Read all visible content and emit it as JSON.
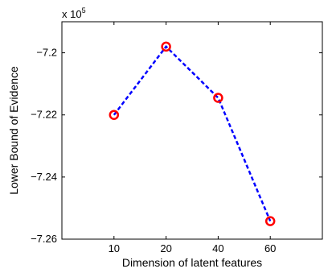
{
  "chart_data": {
    "type": "line",
    "categories": [
      "10",
      "20",
      "40",
      "60"
    ],
    "series": [
      {
        "values": [
          -7.22,
          -7.198,
          -7.2145,
          -7.2542
        ],
        "line_color": "#0000ff",
        "line_style": "dashed",
        "marker": "circle",
        "marker_color": "#ff0000"
      }
    ],
    "xlabel": "Dimension of latent features",
    "ylabel": "Lower Bound of Evidence",
    "y_multiplier": {
      "base": "x 10",
      "exponent": "5"
    },
    "ylim": [
      -7.26,
      -7.19
    ],
    "yticks": [
      -7.2,
      -7.22,
      -7.24,
      -7.26
    ],
    "ytick_labels": [
      "−7.2",
      "−7.22",
      "−7.24",
      "−7.26"
    ],
    "grid": false
  }
}
